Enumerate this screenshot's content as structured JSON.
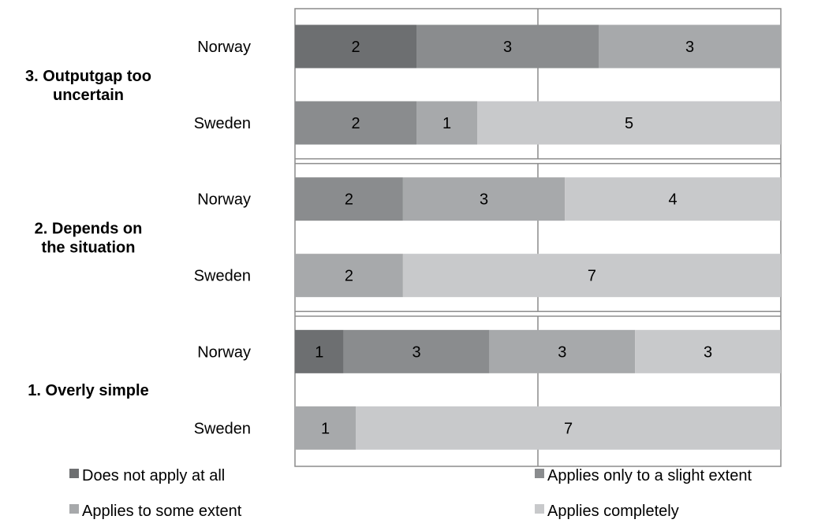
{
  "chart_data": {
    "type": "bar",
    "orientation": "horizontal",
    "stacked": "percent",
    "categories": [
      {
        "name": "3. Outputgap too uncertain",
        "name_lines": [
          "3. Outputgap too",
          "uncertain"
        ],
        "rows": [
          {
            "country": "Norway",
            "values": [
              2,
              3,
              3,
              0
            ]
          },
          {
            "country": "Sweden",
            "values": [
              0,
              2,
              1,
              5
            ]
          }
        ]
      },
      {
        "name": "2. Depends on the situation",
        "name_lines": [
          "2. Depends on",
          "the situation"
        ],
        "rows": [
          {
            "country": "Norway",
            "values": [
              0,
              2,
              3,
              4
            ]
          },
          {
            "country": "Sweden",
            "values": [
              0,
              0,
              2,
              7
            ]
          }
        ]
      },
      {
        "name": "1. Overly simple",
        "name_lines": [
          "1. Overly simple"
        ],
        "rows": [
          {
            "country": "Norway",
            "values": [
              1,
              3,
              3,
              3
            ]
          },
          {
            "country": "Sweden",
            "values": [
              0,
              0,
              1,
              7
            ]
          }
        ]
      }
    ],
    "series": [
      {
        "name": "Does not apply at all",
        "color": "#6d6f71"
      },
      {
        "name": "Applies only to a slight extent",
        "color": "#8a8c8e"
      },
      {
        "name": "Applies to some extent",
        "color": "#a7a9ab"
      },
      {
        "name": "Applies completely",
        "color": "#c8c9cb"
      }
    ],
    "grid": true,
    "legend_position": "bottom"
  }
}
